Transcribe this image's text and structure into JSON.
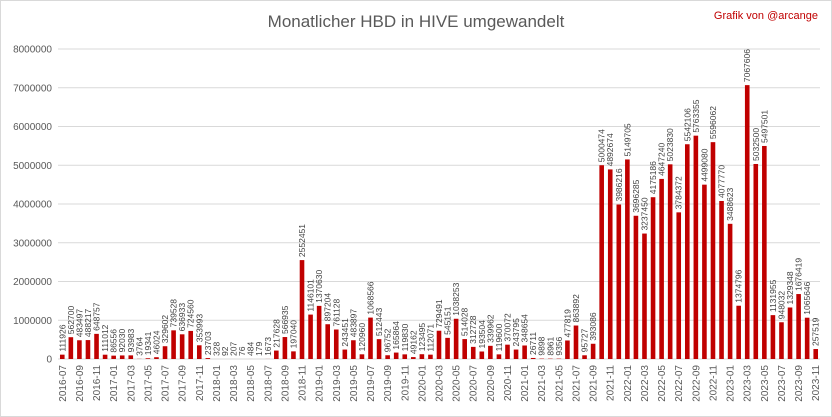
{
  "chart_data": {
    "type": "bar",
    "title": "Monatlicher HBD in HIVE umgewandelt",
    "credit": "Grafik von @arcange",
    "xlabel": "",
    "ylabel": "",
    "ylim": [
      0,
      8000000
    ],
    "yticks": [
      0,
      1000000,
      2000000,
      3000000,
      4000000,
      5000000,
      6000000,
      7000000,
      8000000
    ],
    "grid": true,
    "bar_color": "#c00000",
    "categories": [
      "2016-07",
      "2016-08",
      "2016-09",
      "2016-10",
      "2016-11",
      "2016-12",
      "2017-01",
      "2017-02",
      "2017-03",
      "2017-04",
      "2017-05",
      "2017-06",
      "2017-07",
      "2017-08",
      "2017-09",
      "2017-10",
      "2017-11",
      "2017-12",
      "2018-01",
      "2018-02",
      "2018-03",
      "2018-04",
      "2018-05",
      "2018-06",
      "2018-07",
      "2018-08",
      "2018-09",
      "2018-10",
      "2018-11",
      "2018-12",
      "2019-01",
      "2019-02",
      "2019-03",
      "2019-04",
      "2019-05",
      "2019-06",
      "2019-07",
      "2019-08",
      "2019-09",
      "2019-10",
      "2019-11",
      "2019-12",
      "2020-01",
      "2020-02",
      "2020-03",
      "2020-04",
      "2020-05",
      "2020-06",
      "2020-07",
      "2020-08",
      "2020-09",
      "2020-10",
      "2020-11",
      "2020-12",
      "2021-01",
      "2021-02",
      "2021-03",
      "2021-04",
      "2021-05",
      "2021-06",
      "2021-07",
      "2021-08",
      "2021-09",
      "2021-10",
      "2021-11",
      "2021-12",
      "2022-01",
      "2022-02",
      "2022-03",
      "2022-04",
      "2022-05",
      "2022-06",
      "2022-07",
      "2022-08",
      "2022-09",
      "2022-10",
      "2022-11",
      "2022-12",
      "2023-01",
      "2023-02",
      "2023-03",
      "2023-04",
      "2023-05",
      "2023-06",
      "2023-07",
      "2023-08",
      "2023-09",
      "2023-10",
      "2023-11"
    ],
    "values": [
      111926,
      562700,
      483497,
      488217,
      648757,
      111012,
      86556,
      92030,
      93983,
      3764,
      19341,
      46024,
      329602,
      739528,
      636933,
      724560,
      353993,
      23703,
      328,
      92,
      207,
      76,
      484,
      179,
      1673,
      217628,
      566935,
      197040,
      2552451,
      1146101,
      1370630,
      897204,
      761128,
      243451,
      483897,
      120960,
      1068566,
      512443,
      96752,
      165864,
      119830,
      49162,
      123495,
      112071,
      729491,
      545151,
      1038253,
      514028,
      312728,
      193504,
      339962,
      119600,
      370072,
      243795,
      348654,
      26711,
      9898,
      8961,
      9356,
      477819,
      863892,
      95727,
      393086,
      5000474,
      4892674,
      3986216,
      5149705,
      3696285,
      3237450,
      4175186,
      4647240,
      5023830,
      3784372,
      5542106,
      5763355,
      4499080,
      5596062,
      4077770,
      3488623,
      1374796,
      7067606,
      5032500,
      5497501,
      1131955,
      948032,
      1329348,
      1676419,
      1065646,
      257519
    ]
  }
}
